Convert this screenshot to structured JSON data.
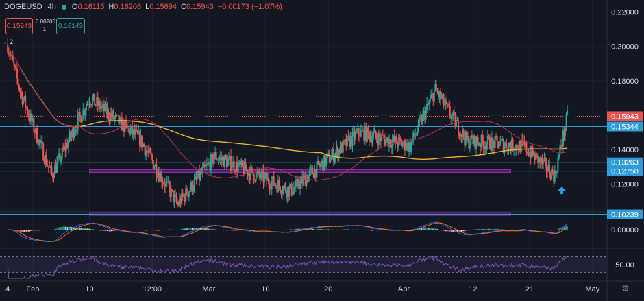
{
  "header": {
    "symbol": "DOGEUSD",
    "timeframe": "4h",
    "open": "0.16115",
    "high": "0.16206",
    "low": "0.15694",
    "close": "0.15943",
    "change": "−0.00173 (−1.07%)",
    "labels": {
      "o": "O",
      "h": "H",
      "l": "L",
      "c": "C"
    }
  },
  "trade_box": {
    "sell": "0.15943",
    "buy": "0.16143",
    "spread": "0.00200",
    "quantity": "1"
  },
  "collapse_label": "2",
  "colors": {
    "background": "#131722",
    "up": "#26a69a",
    "down": "#ef5350",
    "ma_long": "#f0b232",
    "ma_short": "#b5334d",
    "horizontal_level": "#2f9bd8",
    "rectangle": "#9c27b0",
    "arrow": "#2f9bd8",
    "macd": "#2962ff",
    "signal": "#ff6d00",
    "rsi": "#7e57c2"
  },
  "chart_data": [
    {
      "type": "candlestick",
      "ylim": [
        0.105,
        0.225
      ],
      "y_ticks": [
        "0.22000",
        "0.20000",
        "0.18000",
        "0.14000",
        "0.12000"
      ],
      "x_ticks": [
        "4",
        "Feb",
        "10",
        "12:00",
        "Mar",
        "10",
        "20",
        "Apr",
        "12",
        "21",
        "May"
      ],
      "price_tags": [
        {
          "value": 0.15943,
          "label": "0.15943",
          "style": "current"
        },
        {
          "value": 0.15344,
          "label": "0.15344",
          "style": "level"
        },
        {
          "value": 0.13263,
          "label": "0.13263",
          "style": "level"
        },
        {
          "value": 0.1275,
          "label": "0.12750",
          "style": "level"
        },
        {
          "value": 0.10239,
          "label": "0.10239",
          "style": "level"
        }
      ],
      "rectangles": [
        {
          "y": 0.1275,
          "x_start": "Feb 10",
          "x_end": "Apr 18"
        },
        {
          "y": 0.1026,
          "x_start": "Feb 10",
          "x_end": "Apr 18"
        }
      ],
      "moving_averages": [
        "long-period MA",
        "short-period MA"
      ],
      "annotation": "up-arrow below last candles",
      "key_points": [
        {
          "date": "Jan 28",
          "price": 0.201
        },
        {
          "date": "Jan 30",
          "price": 0.174
        },
        {
          "date": "Feb 4",
          "price": 0.125
        },
        {
          "date": "Feb 10",
          "price": 0.17
        },
        {
          "date": "Feb 18",
          "price": 0.146
        },
        {
          "date": "Feb 24",
          "price": 0.108
        },
        {
          "date": "Mar 2",
          "price": 0.136
        },
        {
          "date": "Mar 14",
          "price": 0.116
        },
        {
          "date": "Mar 25",
          "price": 0.15
        },
        {
          "date": "Apr 2",
          "price": 0.142
        },
        {
          "date": "Apr 6",
          "price": 0.175
        },
        {
          "date": "Apr 11",
          "price": 0.145
        },
        {
          "date": "Apr 20",
          "price": 0.142
        },
        {
          "date": "Apr 25",
          "price": 0.125
        },
        {
          "date": "Apr 27",
          "price": 0.159
        }
      ]
    },
    {
      "type": "line",
      "indicator": "MACD",
      "y_ticks": [
        "0.00000"
      ],
      "series": [
        {
          "values": "histogram, macd, signal"
        }
      ]
    },
    {
      "type": "line",
      "indicator": "RSI",
      "y_ticks": [
        "50.00"
      ],
      "band": [
        30,
        70
      ]
    }
  ]
}
